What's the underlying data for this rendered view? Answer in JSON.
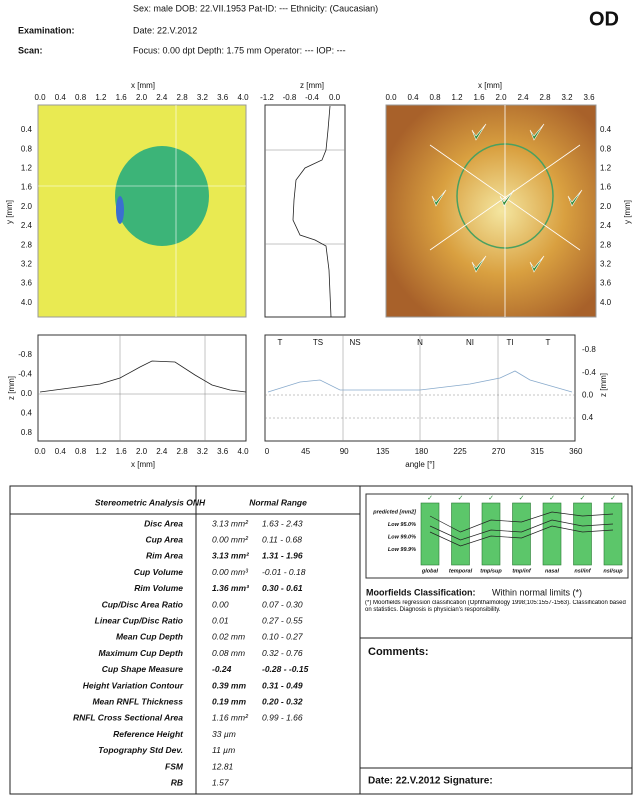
{
  "header": {
    "patient_line": "Sex: male   DOB: 22.VII.1953   Pat-ID: ---   Ethnicity: (Caucasian)",
    "eye": "OD",
    "rows": [
      {
        "label": "Examination:",
        "value": "Date: 22.V.2012"
      },
      {
        "label": "Scan:",
        "value": "Focus: 0.00 dpt   Depth: 1.75 mm   Operator: ---   IOP: ---"
      }
    ]
  },
  "topography": {
    "x_label": "x [mm]",
    "x_ticks": [
      "0.0",
      "0.4",
      "0.8",
      "1.2",
      "1.6",
      "2.0",
      "2.4",
      "2.8",
      "3.2",
      "3.6",
      "4.0"
    ],
    "y_label": "y [mm]",
    "y_ticks": [
      "0.4",
      "0.8",
      "1.2",
      "1.6",
      "2.0",
      "2.4",
      "2.8",
      "3.2",
      "3.6",
      "4.0"
    ]
  },
  "vertical_profile": {
    "z_label": "z [mm]",
    "z_ticks": [
      "-1.2",
      "-0.8",
      "-0.4",
      "0.0"
    ]
  },
  "fundus": {
    "x_label": "x [mm]",
    "x_ticks": [
      "0.0",
      "0.4",
      "0.8",
      "1.2",
      "1.6",
      "2.0",
      "2.4",
      "2.8",
      "3.2",
      "3.6"
    ],
    "y_label": "y [mm]",
    "y_ticks": [
      "0.4",
      "0.8",
      "1.2",
      "1.6",
      "2.0",
      "2.4",
      "2.8",
      "3.2",
      "3.6",
      "4.0"
    ]
  },
  "horizontal_profile": {
    "z_label": "z [mm]",
    "z_ticks": [
      "-0.8",
      "-0.4",
      "0.0",
      "0.4",
      "0.8"
    ],
    "x_label": "x [mm]",
    "x_ticks": [
      "0.0",
      "0.4",
      "0.8",
      "1.2",
      "1.6",
      "2.0",
      "2.4",
      "2.8",
      "3.2",
      "3.6",
      "4.0"
    ]
  },
  "contour_plot": {
    "sectors": [
      "T",
      "TS",
      "NS",
      "N",
      "NI",
      "TI",
      "T"
    ],
    "x_label": "angle [°]",
    "x_ticks": [
      "0",
      "45",
      "90",
      "135",
      "180",
      "225",
      "270",
      "315",
      "360"
    ],
    "z_label": "z [mm]",
    "z_ticks": [
      "-0.8",
      "-0.4",
      "0.0",
      "0.4"
    ]
  },
  "table": {
    "title": "Stereometric Analysis ONH",
    "range_header": "Normal Range",
    "rows": [
      {
        "name": "Disc Area",
        "value": "3.13  mm²",
        "range": "1.63 - 2.43",
        "bold": false
      },
      {
        "name": "Cup Area",
        "value": "0.00  mm²",
        "range": "0.11 - 0.68",
        "bold": false
      },
      {
        "name": "Rim Area",
        "value": "3.13  mm²",
        "range": "1.31 - 1.96",
        "bold": true
      },
      {
        "name": "Cup Volume",
        "value": "0.00  mm³",
        "range": "-0.01 - 0.18",
        "bold": false
      },
      {
        "name": "Rim Volume",
        "value": "1.36  mm³",
        "range": "0.30 - 0.61",
        "bold": true
      },
      {
        "name": "Cup/Disc Area Ratio",
        "value": "0.00",
        "range": "0.07 - 0.30",
        "bold": false
      },
      {
        "name": "Linear Cup/Disc Ratio",
        "value": "0.01",
        "range": "0.27 - 0.55",
        "bold": false
      },
      {
        "name": "Mean Cup Depth",
        "value": "0.02  mm",
        "range": "0.10 - 0.27",
        "bold": false
      },
      {
        "name": "Maximum Cup Depth",
        "value": "0.08  mm",
        "range": "0.32 - 0.76",
        "bold": false
      },
      {
        "name": "Cup Shape Measure",
        "value": "-0.24",
        "range": "-0.28 - -0.15",
        "bold": true
      },
      {
        "name": "Height Variation Contour",
        "value": "0.39  mm",
        "range": "0.31 - 0.49",
        "bold": true
      },
      {
        "name": "Mean RNFL Thickness",
        "value": "0.19  mm",
        "range": "0.20 - 0.32",
        "bold": true
      },
      {
        "name": "RNFL Cross Sectional Area",
        "value": "1.16  mm²",
        "range": "0.99 - 1.66",
        "bold": false
      },
      {
        "name": "Reference Height",
        "value": "33  µm",
        "range": null,
        "bold": false
      },
      {
        "name": "Topography Std Dev.",
        "value": "11  µm",
        "range": null,
        "bold": false
      },
      {
        "name": "FSM",
        "value": "12.81",
        "range": null,
        "bold": false
      },
      {
        "name": "RB",
        "value": "1.57",
        "range": null,
        "bold": false
      }
    ]
  },
  "moorfields": {
    "levels": [
      "predicted [mm2]",
      "Low 95.0%",
      "Low 99.0%",
      "Low 99.9%"
    ],
    "sectors": [
      "global",
      "temporal",
      "tmp/sup",
      "tmp/inf",
      "nasal",
      "nsl/inf",
      "nsl/sup"
    ],
    "classification_label": "Moorfields Classification:",
    "classification": "Within normal limits (*)",
    "footnote": "(*) Moorfields regression classification (Ophthalmology 1998;105:1557-1563). Classification based on statistics. Diagnosis is physician's responsibility."
  },
  "comments_label": "Comments:",
  "footer": "Date: 22.V.2012   Signature:"
}
